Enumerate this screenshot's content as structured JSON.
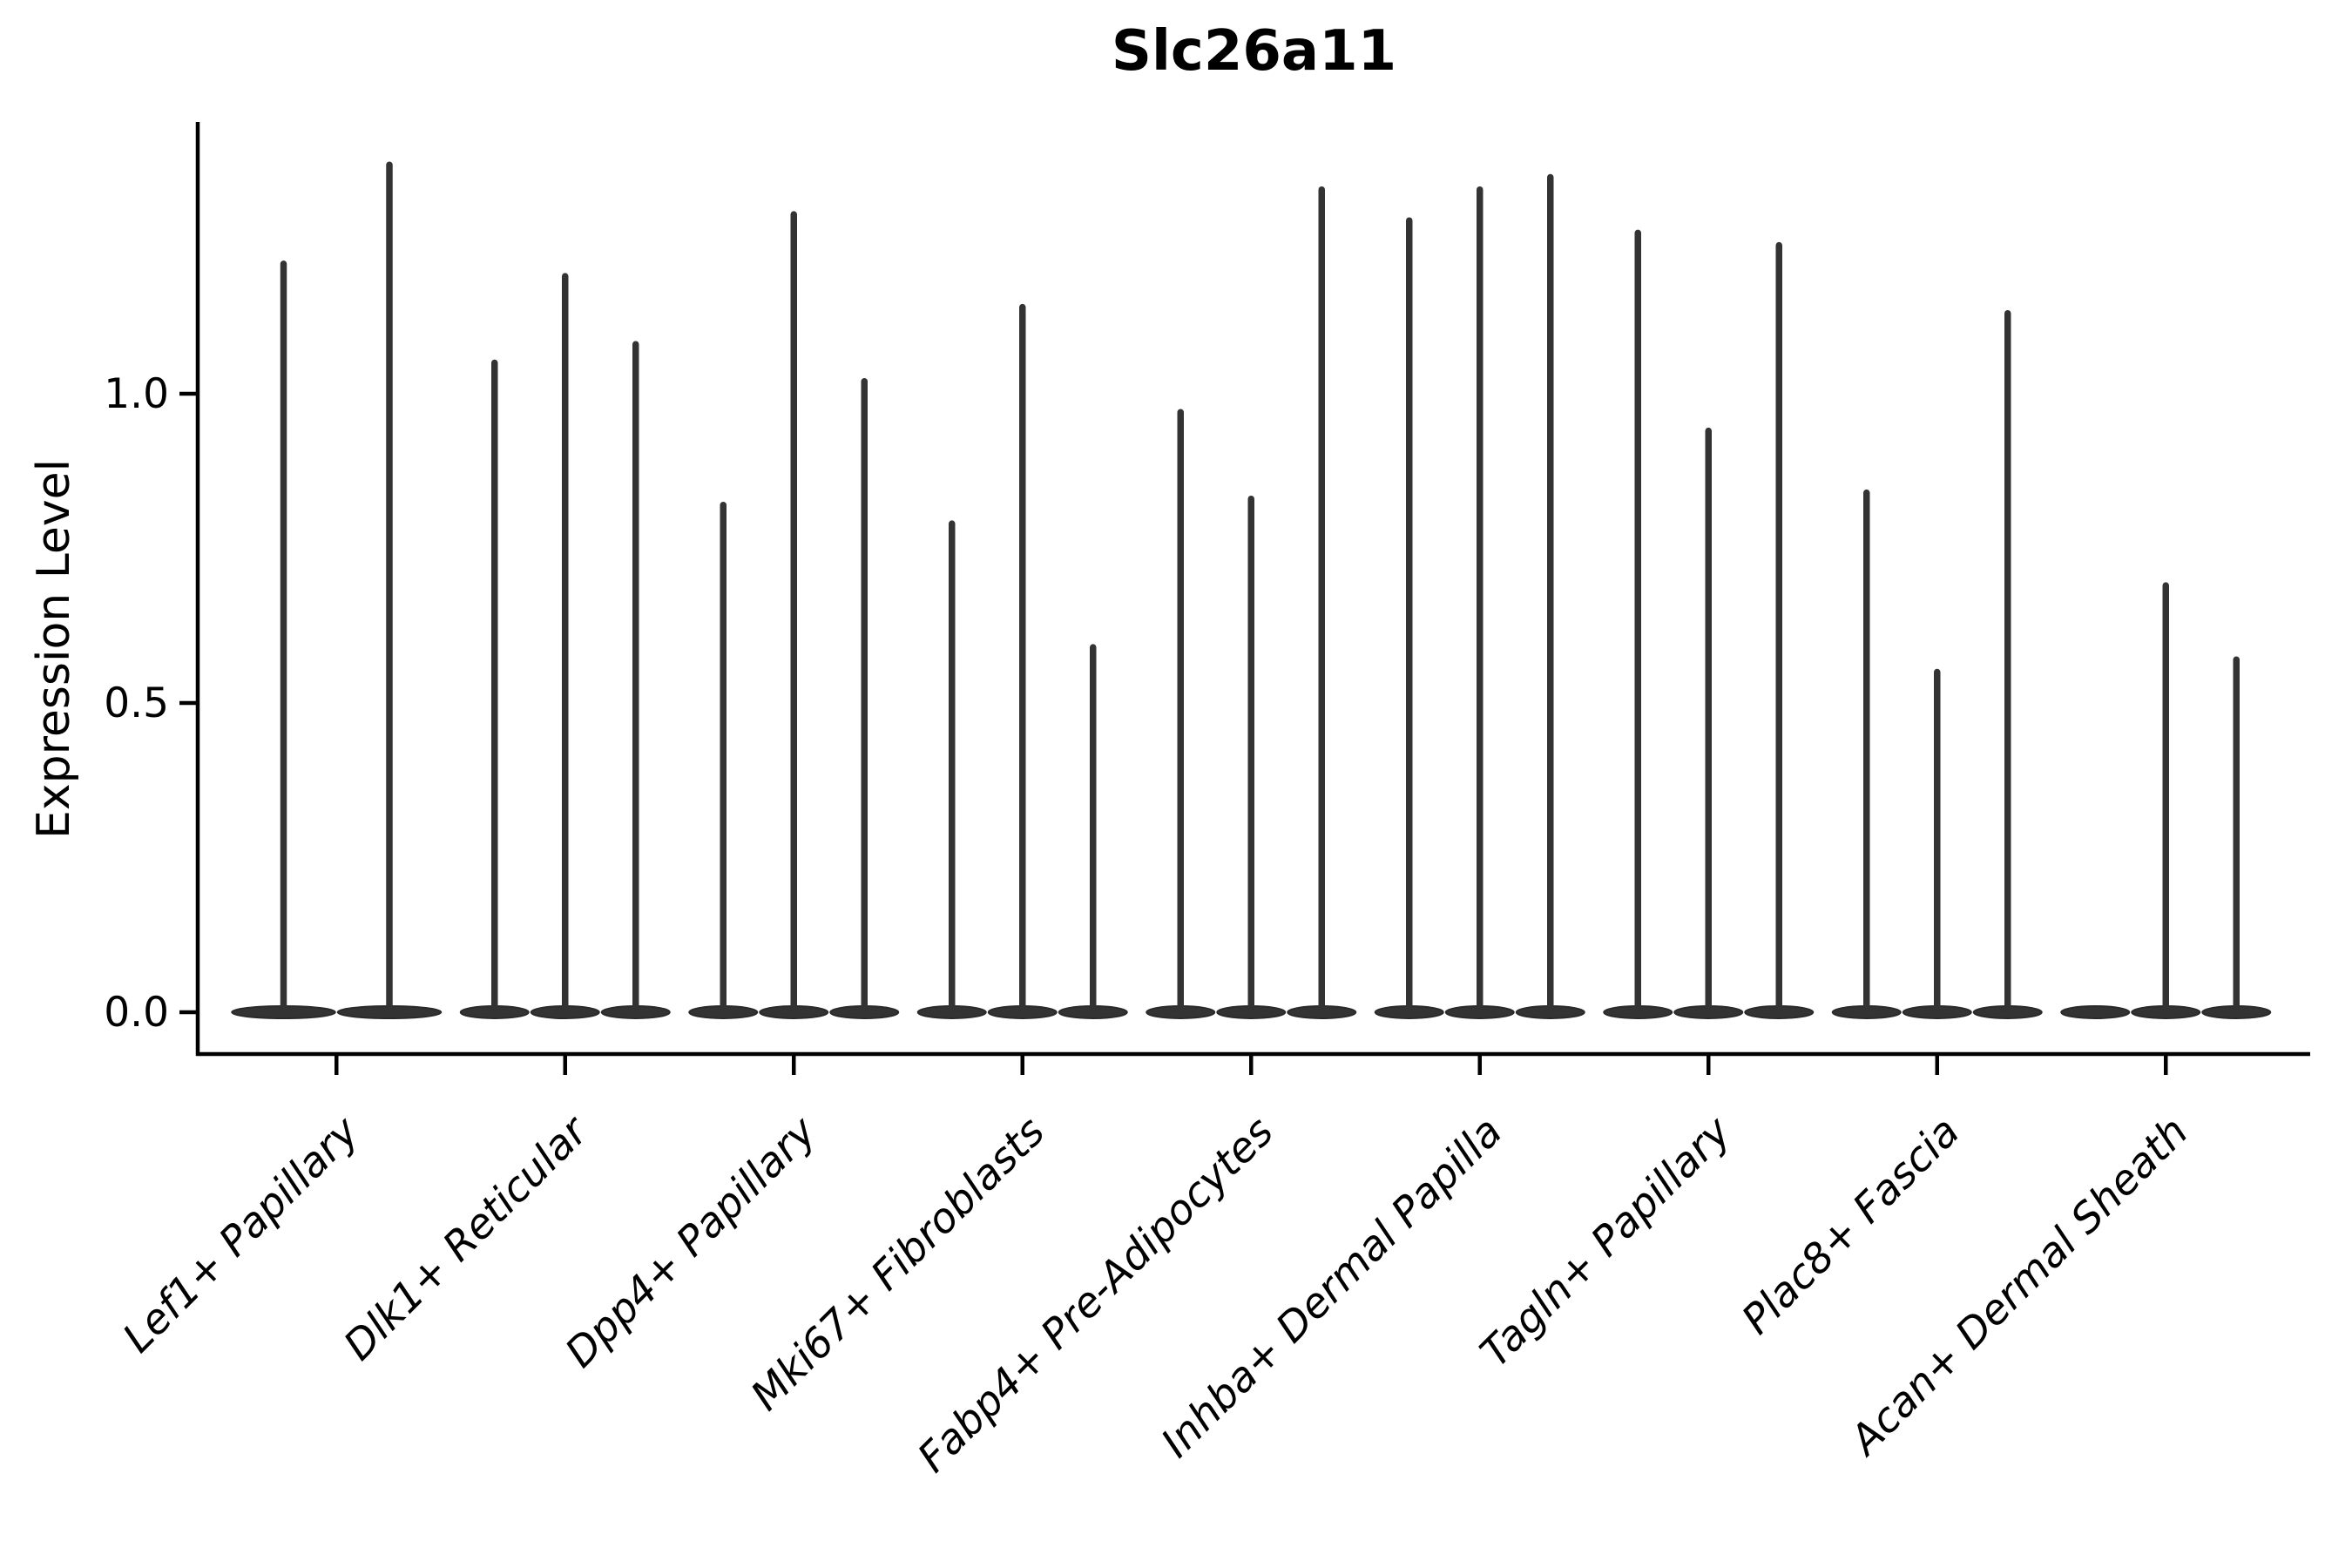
{
  "chart_data": {
    "type": "violin",
    "title": "Slc26a11",
    "ylabel": "Expression Level",
    "xlabel": "",
    "yticks": [
      "0.0",
      "0.5",
      "1.0"
    ],
    "ylim": [
      -0.07,
      1.44
    ],
    "grid": false,
    "legend": "none",
    "x_tick_rotation": 45,
    "x_tick_style": "italic",
    "violin_color": "#333333",
    "axis_color": "#000000",
    "categories": [
      "Lef1+ Papillary",
      "Dlk1+ Reticular",
      "Dpp4+ Papillary",
      "Mki67+ Fibroblasts",
      "Fabp4+ Pre-Adipocytes",
      "Inhba+ Dermal Papilla",
      "Tagln+ Papillary",
      "Plac8+ Fascia",
      "Acan+ Dermal Sheath"
    ],
    "violins": [
      {
        "category": "Lef1+ Papillary",
        "spikes": [
          1.21,
          1.37
        ]
      },
      {
        "category": "Dlk1+ Reticular",
        "spikes": [
          1.05,
          1.19,
          1.08
        ]
      },
      {
        "category": "Dpp4+ Papillary",
        "spikes": [
          0.82,
          1.29,
          1.02
        ]
      },
      {
        "category": "Mki67+ Fibroblasts",
        "spikes": [
          0.79,
          1.14,
          0.59
        ]
      },
      {
        "category": "Fabp4+ Pre-Adipocytes",
        "spikes": [
          0.97,
          0.83,
          1.33
        ]
      },
      {
        "category": "Inhba+ Dermal Papilla",
        "spikes": [
          1.28,
          1.33,
          1.35
        ]
      },
      {
        "category": "Tagln+ Papillary",
        "spikes": [
          1.26,
          0.94,
          1.24
        ]
      },
      {
        "category": "Plac8+ Fascia",
        "spikes": [
          0.84,
          0.55,
          1.13
        ]
      },
      {
        "category": "Acan+ Dermal Sheath",
        "spikes": [
          0,
          0.69,
          0.57
        ]
      }
    ]
  }
}
